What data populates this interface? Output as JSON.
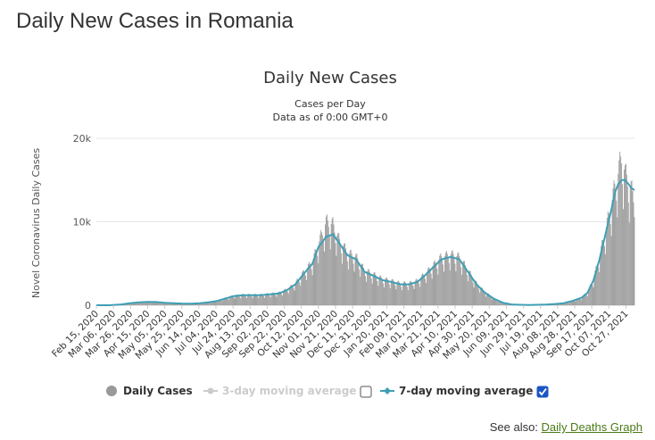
{
  "page": {
    "title": "Daily New Cases in Romania",
    "see_also_label": "See also:",
    "see_also_link": "Daily Deaths Graph"
  },
  "colors": {
    "bars": "#999999",
    "ma7": "#3f9fb5",
    "ma3": "#cccccc",
    "grid": "#e6e6e6"
  },
  "chart_data": {
    "type": "bar",
    "title": "Daily New Cases",
    "subtitle": "Cases per Day",
    "subtitle2": "Data as of 0:00 GMT+0",
    "ylabel": "Novel Coronavirus Daily Cases",
    "ylim": [
      0,
      20000
    ],
    "yticks": [
      0,
      10000,
      20000
    ],
    "ytick_labels": [
      "0",
      "10k",
      "20k"
    ],
    "x_range": [
      "2020-02-15",
      "2021-11-06"
    ],
    "x_tick_labels": [
      "Feb 15, 2020",
      "Mar 06, 2020",
      "Mar 26, 2020",
      "Apr 15, 2020",
      "May 05, 2020",
      "May 25, 2020",
      "Jun 14, 2020",
      "Jul 04, 2020",
      "Jul 24, 2020",
      "Aug 13, 2020",
      "Sep 02, 2020",
      "Sep 22, 2020",
      "Oct 12, 2020",
      "Nov 01, 2020",
      "Nov 21, 2020",
      "Dec 11, 2020",
      "Dec 31, 2020",
      "Jan 20, 2021",
      "Feb 09, 2021",
      "Mar 01, 2021",
      "Mar 21, 2021",
      "Apr 10, 2021",
      "Apr 30, 2021",
      "May 20, 2021",
      "Jun 09, 2021",
      "Jun 29, 2021",
      "Jul 19, 2021",
      "Aug 08, 2021",
      "Aug 28, 2021",
      "Sep 17, 2021",
      "Oct 07, 2021",
      "Oct 27, 2021"
    ],
    "grid": true,
    "legend_position": "bottom",
    "series": [
      {
        "name": "Daily Cases",
        "kind": "bar",
        "x": [
          "2020-02-15",
          "2020-03-01",
          "2020-03-15",
          "2020-03-25",
          "2020-04-05",
          "2020-04-15",
          "2020-04-25",
          "2020-05-05",
          "2020-05-15",
          "2020-05-25",
          "2020-06-05",
          "2020-06-15",
          "2020-06-25",
          "2020-07-05",
          "2020-07-15",
          "2020-07-25",
          "2020-08-05",
          "2020-08-15",
          "2020-08-25",
          "2020-09-05",
          "2020-09-15",
          "2020-09-25",
          "2020-10-05",
          "2020-10-15",
          "2020-10-25",
          "2020-11-01",
          "2020-11-10",
          "2020-11-18",
          "2020-11-25",
          "2020-12-05",
          "2020-12-15",
          "2020-12-25",
          "2021-01-05",
          "2021-01-15",
          "2021-01-25",
          "2021-02-05",
          "2021-02-15",
          "2021-02-25",
          "2021-03-05",
          "2021-03-15",
          "2021-03-25",
          "2021-04-05",
          "2021-04-15",
          "2021-04-25",
          "2021-05-05",
          "2021-05-15",
          "2021-05-25",
          "2021-06-05",
          "2021-06-15",
          "2021-06-25",
          "2021-07-05",
          "2021-07-15",
          "2021-07-25",
          "2021-08-05",
          "2021-08-15",
          "2021-08-25",
          "2021-09-05",
          "2021-09-12",
          "2021-09-19",
          "2021-09-26",
          "2021-10-03",
          "2021-10-10",
          "2021-10-14",
          "2021-10-18",
          "2021-10-22",
          "2021-10-26",
          "2021-10-30",
          "2021-11-03",
          "2021-11-06"
        ],
        "values": [
          0,
          5,
          100,
          250,
          350,
          400,
          380,
          300,
          250,
          200,
          180,
          250,
          350,
          500,
          800,
          1100,
          1200,
          1200,
          1200,
          1300,
          1400,
          1800,
          2500,
          3800,
          5000,
          7000,
          9500,
          9200,
          7500,
          6000,
          5500,
          4000,
          3500,
          3000,
          2800,
          2500,
          2500,
          2800,
          3500,
          4500,
          5500,
          5800,
          5500,
          4000,
          2500,
          1500,
          800,
          300,
          100,
          50,
          30,
          50,
          80,
          150,
          250,
          500,
          900,
          1500,
          3000,
          5500,
          8500,
          11500,
          13500,
          15000,
          17000,
          15000,
          14000,
          13000,
          12000
        ]
      },
      {
        "name": "3-day moving average",
        "kind": "line",
        "visible": false
      },
      {
        "name": "7-day moving average",
        "kind": "line",
        "visible": true,
        "x": [
          "2020-02-15",
          "2020-03-01",
          "2020-03-15",
          "2020-03-25",
          "2020-04-05",
          "2020-04-15",
          "2020-04-25",
          "2020-05-05",
          "2020-05-15",
          "2020-05-25",
          "2020-06-05",
          "2020-06-15",
          "2020-06-25",
          "2020-07-05",
          "2020-07-15",
          "2020-07-25",
          "2020-08-05",
          "2020-08-15",
          "2020-08-25",
          "2020-09-05",
          "2020-09-15",
          "2020-09-25",
          "2020-10-05",
          "2020-10-15",
          "2020-10-25",
          "2020-11-01",
          "2020-11-10",
          "2020-11-18",
          "2020-11-25",
          "2020-12-05",
          "2020-12-15",
          "2020-12-25",
          "2021-01-05",
          "2021-01-15",
          "2021-01-25",
          "2021-02-05",
          "2021-02-15",
          "2021-02-25",
          "2021-03-05",
          "2021-03-15",
          "2021-03-25",
          "2021-04-05",
          "2021-04-15",
          "2021-04-25",
          "2021-05-05",
          "2021-05-15",
          "2021-05-25",
          "2021-06-05",
          "2021-06-15",
          "2021-06-25",
          "2021-07-05",
          "2021-07-15",
          "2021-07-25",
          "2021-08-05",
          "2021-08-15",
          "2021-08-25",
          "2021-09-05",
          "2021-09-12",
          "2021-09-19",
          "2021-09-26",
          "2021-10-03",
          "2021-10-10",
          "2021-10-14",
          "2021-10-18",
          "2021-10-22",
          "2021-10-26",
          "2021-10-30",
          "2021-11-03",
          "2021-11-06"
        ],
        "values": [
          0,
          5,
          100,
          250,
          350,
          400,
          380,
          300,
          250,
          200,
          180,
          250,
          350,
          500,
          800,
          1100,
          1200,
          1200,
          1200,
          1300,
          1400,
          1800,
          2500,
          3800,
          5000,
          7000,
          8200,
          8500,
          7500,
          6000,
          5500,
          4000,
          3500,
          3000,
          2800,
          2500,
          2500,
          2800,
          3500,
          4500,
          5500,
          5800,
          5500,
          4000,
          2500,
          1500,
          800,
          300,
          100,
          50,
          30,
          50,
          80,
          150,
          250,
          500,
          900,
          1500,
          3000,
          5500,
          8500,
          11500,
          13500,
          14500,
          15000,
          15000,
          14500,
          14000,
          13800
        ]
      }
    ]
  },
  "legend": {
    "items": [
      {
        "label": "Daily Cases",
        "color": "#999999"
      },
      {
        "label": "3-day moving average",
        "color": "#cccccc"
      },
      {
        "label": "7-day moving average",
        "color": "#3f9fb5"
      }
    ],
    "checkbox_3day": false,
    "checkbox_7day": true
  }
}
